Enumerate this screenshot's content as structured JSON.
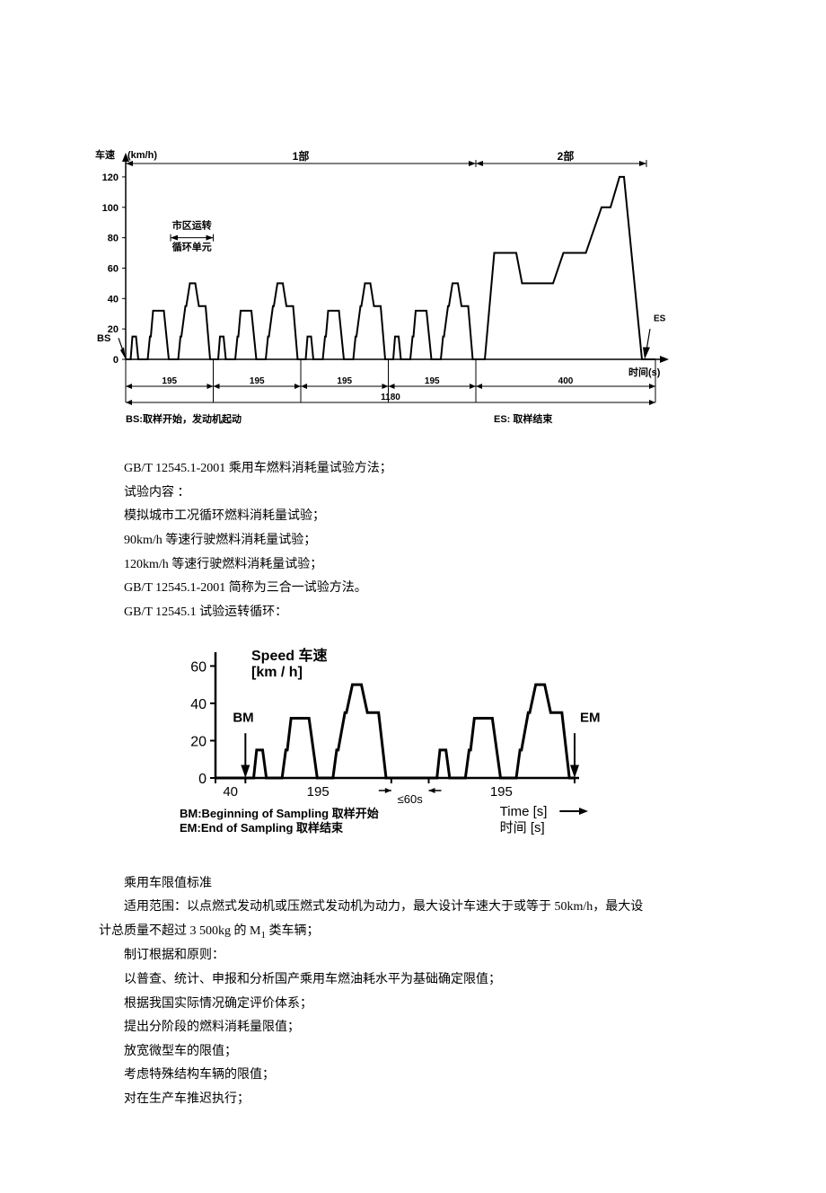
{
  "chart1": {
    "type": "line",
    "y_label": "车速",
    "y_unit": "(km/h)",
    "x_label": "时间(s)",
    "y_ticks": [
      0,
      20,
      40,
      60,
      80,
      100,
      120
    ],
    "part1_label": "1部",
    "part2_label": "2部",
    "bs_label": "BS",
    "es_label": "ES",
    "urban_cycle_label_1": "市区运转",
    "urban_cycle_label_2": "循环单元",
    "segment_195": "195",
    "segment_400": "400",
    "total_1180": "1180",
    "bs_caption": "BS:取样开始，发动机起动",
    "es_caption": "ES: 取样结束",
    "arrow_color": "#000000",
    "line_color": "#000000",
    "axis_color": "#000000",
    "background_color": "#ffffff",
    "line_width": 2,
    "y_range": [
      0,
      130
    ],
    "x_range": [
      0,
      1180
    ],
    "urban_cycle": [
      [
        0,
        0
      ],
      [
        11,
        0
      ],
      [
        15,
        15
      ],
      [
        23,
        15
      ],
      [
        28,
        0
      ],
      [
        49,
        0
      ],
      [
        54,
        15
      ],
      [
        56,
        15
      ],
      [
        61,
        32
      ],
      [
        85,
        32
      ],
      [
        96,
        0
      ],
      [
        117,
        0
      ],
      [
        122,
        15
      ],
      [
        124,
        15
      ],
      [
        133,
        35
      ],
      [
        135,
        35
      ],
      [
        143,
        50
      ],
      [
        155,
        50
      ],
      [
        163,
        35
      ],
      [
        178,
        35
      ],
      [
        188,
        0
      ],
      [
        195,
        0
      ]
    ],
    "extra_urban": [
      [
        0,
        0
      ],
      [
        20,
        0
      ],
      [
        41,
        70
      ],
      [
        90,
        70
      ],
      [
        103,
        50
      ],
      [
        172,
        50
      ],
      [
        195,
        70
      ],
      [
        245,
        70
      ],
      [
        280,
        100
      ],
      [
        300,
        100
      ],
      [
        320,
        120
      ],
      [
        330,
        120
      ],
      [
        370,
        0
      ],
      [
        400,
        0
      ]
    ]
  },
  "text1": {
    "line1": "GB/T 12545.1-2001 乘用车燃料消耗量试验方法；",
    "line2": "试验内容 ：",
    "line3": "模拟城市工况循环燃料消耗量试验；",
    "line4": "90km/h 等速行驶燃料消耗量试验；",
    "line5": "120km/h 等速行驶燃料消耗量试验；",
    "line6": "GB/T 12545.1-2001 简称为三合一试验方法。",
    "line7": "GB/T 12545.1 试验运转循环："
  },
  "chart2": {
    "type": "line",
    "speed_label": "Speed 车速",
    "speed_unit": "[km / h]",
    "y_ticks": [
      0,
      20,
      40,
      60
    ],
    "bm_label": "BM",
    "em_label": "EM",
    "x_40": "40",
    "x_195a": "195",
    "x_lt60s": "≤60s",
    "x_195b": "195",
    "bm_caption": "BM:Beginning of Sampling 取样开始",
    "em_caption": "EM:End of Sampling 取样结束",
    "time_label": "Time [s]",
    "time_cn": "时间 [s]",
    "line_color": "#000000",
    "axis_color": "#000000",
    "background_color": "#ffffff",
    "line_width": 3,
    "y_range": [
      0,
      65
    ],
    "cycle": [
      [
        0,
        0
      ],
      [
        11,
        0
      ],
      [
        15,
        15
      ],
      [
        23,
        15
      ],
      [
        28,
        0
      ],
      [
        49,
        0
      ],
      [
        54,
        15
      ],
      [
        56,
        15
      ],
      [
        61,
        32
      ],
      [
        85,
        32
      ],
      [
        96,
        0
      ],
      [
        117,
        0
      ],
      [
        122,
        15
      ],
      [
        124,
        15
      ],
      [
        133,
        35
      ],
      [
        135,
        35
      ],
      [
        143,
        50
      ],
      [
        155,
        50
      ],
      [
        163,
        35
      ],
      [
        178,
        35
      ],
      [
        188,
        0
      ],
      [
        195,
        0
      ]
    ]
  },
  "text2": {
    "h1": "乘用车限值标准",
    "p1a": "适用范围：以点燃式发动机或压燃式发动机为动力，最大设计车速大于或等于 50km/h，最大设",
    "p1b": "计总质量不超过 3 500kg 的 M",
    "p1b_sub": "1",
    "p1b_tail": " 类车辆；",
    "p2": "制订根据和原则：",
    "p3": "以普查、统计、申报和分析国产乘用车燃油耗水平为基础确定限值；",
    "p4": "根据我国实际情况确定评价体系；",
    "p5": "提出分阶段的燃料消耗量限值；",
    "p6": "放宽微型车的限值；",
    "p7": "考虑特殊结构车辆的限值；",
    "p8": "对在生产车推迟执行；"
  }
}
